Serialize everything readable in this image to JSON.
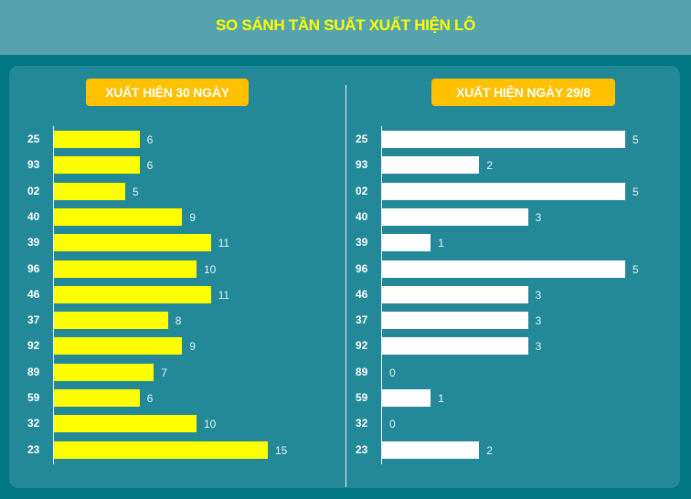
{
  "header": {
    "title": "SO SÁNH TẦN SUẤT XUẤT HIỆN LÔ"
  },
  "left_panel": {
    "badge": "XUẤT HIỆN 30 NGÀY"
  },
  "right_panel": {
    "badge": "XUẤT HIỆN NGÀY 29/8"
  },
  "colors": {
    "page_bg": "#017784",
    "header_bg": "#55a3ae",
    "panel_bg": "#238998",
    "title_text": "#ffff00",
    "badge_bg": "#ffc000",
    "bar_left": "#ffff00",
    "bar_right": "#ffffff"
  },
  "chart_data": [
    {
      "type": "bar",
      "orientation": "horizontal",
      "title": "XUẤT HIỆN 30 NGÀY",
      "categories": [
        "25",
        "93",
        "02",
        "40",
        "39",
        "96",
        "46",
        "37",
        "92",
        "89",
        "59",
        "32",
        "23"
      ],
      "values": [
        6,
        6,
        5,
        9,
        11,
        10,
        11,
        8,
        9,
        7,
        6,
        10,
        15
      ],
      "xlabel": "",
      "ylabel": "",
      "xlim": [
        0,
        15
      ],
      "grid": false,
      "data_labels": true,
      "bar_color": "#ffff00"
    },
    {
      "type": "bar",
      "orientation": "horizontal",
      "title": "XUẤT HIỆN NGÀY 29/8",
      "categories": [
        "25",
        "93",
        "02",
        "40",
        "39",
        "96",
        "46",
        "37",
        "92",
        "89",
        "59",
        "32",
        "23"
      ],
      "values": [
        5,
        2,
        5,
        3,
        1,
        5,
        3,
        3,
        3,
        0,
        1,
        0,
        2
      ],
      "xlabel": "",
      "ylabel": "",
      "xlim": [
        0,
        5
      ],
      "grid": false,
      "data_labels": true,
      "bar_color": "#ffffff"
    }
  ]
}
